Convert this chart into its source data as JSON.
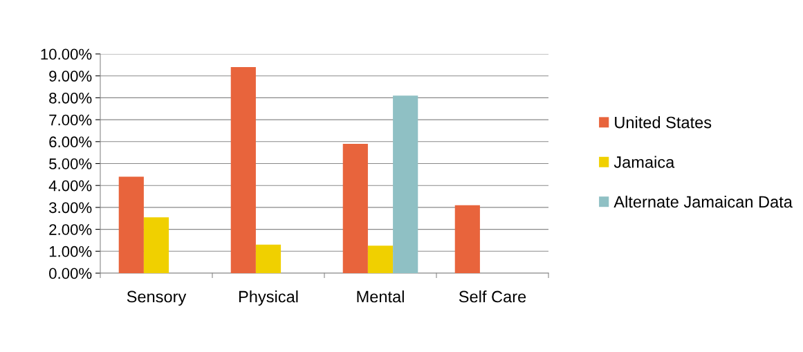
{
  "chart_data": {
    "type": "bar",
    "categories": [
      "Sensory",
      "Physical",
      "Mental",
      "Self Care"
    ],
    "series": [
      {
        "name": "United States",
        "color": "#e8643c",
        "values": [
          4.4,
          9.4,
          5.9,
          3.1
        ]
      },
      {
        "name": "Jamaica",
        "color": "#f0d000",
        "values": [
          2.55,
          1.3,
          1.25,
          null
        ]
      },
      {
        "name": "Alternate Jamaican Data",
        "color": "#8fc0c4",
        "values": [
          null,
          null,
          8.1,
          null
        ]
      }
    ],
    "ylim": [
      0,
      10
    ],
    "yticks": [
      {
        "value": 0,
        "label": "0.00%"
      },
      {
        "value": 1,
        "label": "1.00%"
      },
      {
        "value": 2,
        "label": "2.00%"
      },
      {
        "value": 3,
        "label": "3.00%"
      },
      {
        "value": 4,
        "label": "4.00%"
      },
      {
        "value": 5,
        "label": "5.00%"
      },
      {
        "value": 6,
        "label": "6.00%"
      },
      {
        "value": 7,
        "label": "7.00%"
      },
      {
        "value": 8,
        "label": "8.00%"
      },
      {
        "value": 9,
        "label": "9.00%"
      },
      {
        "value": 10,
        "label": "10.00%"
      }
    ],
    "grid": "y",
    "legend": "right"
  }
}
